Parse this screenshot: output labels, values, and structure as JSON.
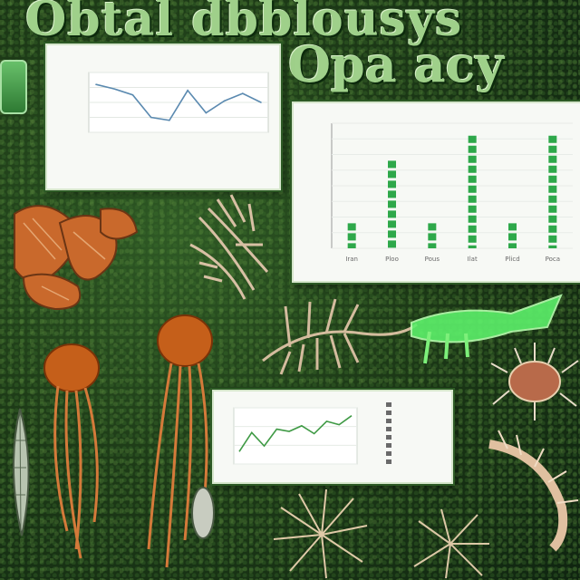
{
  "title": {
    "line1": "Obtal dbblousys",
    "line2": "Opa acy"
  },
  "charts": [
    {
      "type": "line",
      "color": "#5b8ab0",
      "x_tick_labels": [
        "",
        "",
        "",
        "",
        "",
        "",
        "",
        "",
        "",
        ""
      ],
      "values": [
        8.2,
        7.9,
        7.5,
        6.0,
        5.8,
        7.8,
        6.3,
        7.1,
        7.6,
        7.0
      ]
    },
    {
      "type": "bar",
      "color": "#2ea84a",
      "categories": [
        "Iran",
        "Ploo",
        "Pous",
        "Ilat",
        "Plicd",
        "Poca"
      ],
      "values": [
        2,
        7,
        2,
        9,
        2,
        9
      ],
      "ylim": [
        0,
        10
      ]
    },
    {
      "type": "line",
      "color": "#3f9a45",
      "values": [
        4.1,
        5.8,
        4.6,
        6.1,
        5.9,
        6.4,
        5.7,
        6.8,
        6.5,
        7.3
      ],
      "legend_lines": [
        "",
        "",
        "",
        "",
        "",
        "",
        "",
        ""
      ]
    }
  ],
  "colors": {
    "title": "#9fd08a",
    "moss": "#2f5a25",
    "jellyfish": "#c55f1a",
    "glow_creature": "#5cf06a"
  }
}
